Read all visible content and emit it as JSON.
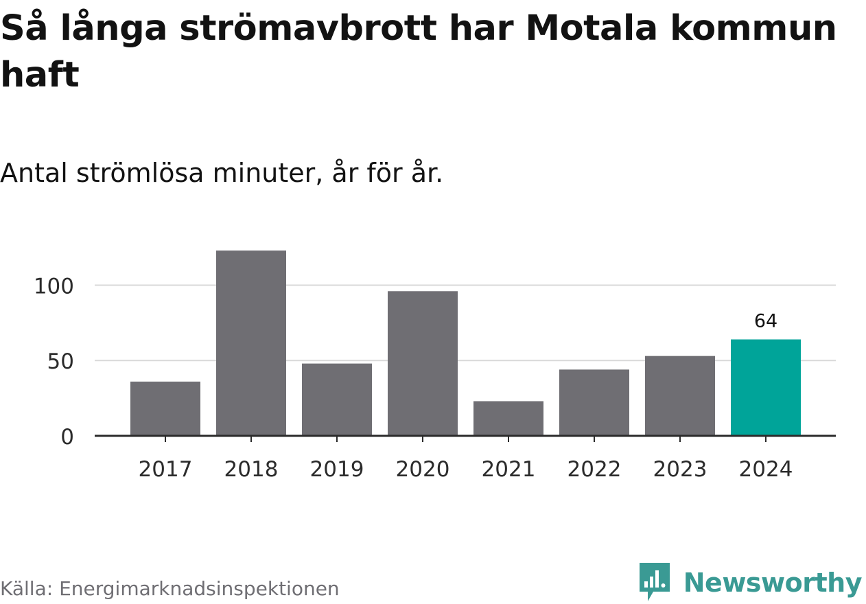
{
  "title": "Så långa strömavbrott har Motala kommun haft",
  "subtitle": "Antal strömlösa minuter, år för år.",
  "source": "Källa: Energimarknadsinspektionen",
  "brand": {
    "name": "Newsworthy",
    "color": "#3a9a94",
    "icon": "newsworthy-logo-icon"
  },
  "colors": {
    "bar": "#6f6e73",
    "highlight": "#00a499",
    "grid": "#d9d9d9",
    "axis": "#2b2b2b",
    "text": "#2b2b2b"
  },
  "chart_data": {
    "type": "bar",
    "categories": [
      "2017",
      "2018",
      "2019",
      "2020",
      "2021",
      "2022",
      "2023",
      "2024"
    ],
    "values": [
      36,
      123,
      48,
      96,
      23,
      44,
      53,
      64
    ],
    "highlight_index": 7,
    "data_labels": [
      {
        "index": 7,
        "text": "64"
      }
    ],
    "yticks": [
      0,
      50,
      100
    ],
    "ytick_labels": [
      "0",
      "50",
      "100"
    ],
    "ylim": [
      0,
      123
    ],
    "title": "Så långa strömavbrott har Motala kommun haft",
    "xlabel": "",
    "ylabel": "",
    "grid": true,
    "legend": "none"
  }
}
